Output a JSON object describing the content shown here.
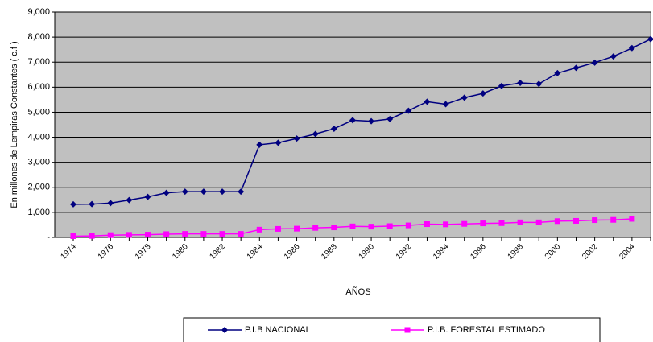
{
  "chart_data": {
    "type": "line",
    "categories": [
      "1974",
      null,
      "1976",
      null,
      "1978",
      null,
      "1980",
      null,
      "1982",
      null,
      "1984",
      null,
      "1986",
      null,
      "1988",
      null,
      "1990",
      null,
      "1992",
      null,
      "1994",
      null,
      "1996",
      null,
      "1998",
      null,
      "2000",
      null,
      "2002",
      null,
      "2004",
      null
    ],
    "series": [
      {
        "name": "P.I.B NACIONAL",
        "color": "#000080",
        "marker": "diamond",
        "values": [
          1320,
          1330,
          1370,
          1490,
          1620,
          1780,
          1830,
          1830,
          1830,
          1830,
          3700,
          3780,
          3950,
          4130,
          4340,
          4680,
          4640,
          4730,
          5060,
          5420,
          5320,
          5580,
          5750,
          6050,
          6170,
          6130,
          6560,
          6770,
          6980,
          7230,
          7560,
          7920
        ]
      },
      {
        "name": "P.I.B. FORESTAL ESTIMADO",
        "color": "#ff00ff",
        "marker": "square",
        "values": [
          50,
          60,
          90,
          100,
          110,
          130,
          140,
          140,
          140,
          140,
          310,
          340,
          350,
          380,
          400,
          440,
          430,
          450,
          480,
          530,
          520,
          540,
          560,
          570,
          600,
          600,
          650,
          660,
          690,
          700,
          740,
          null
        ]
      }
    ],
    "ylim": [
      0,
      9000
    ],
    "yticks": [
      {
        "value": 0,
        "label": "-"
      },
      {
        "value": 1000,
        "label": "1,000"
      },
      {
        "value": 2000,
        "label": "2,000"
      },
      {
        "value": 3000,
        "label": "3,000"
      },
      {
        "value": 4000,
        "label": "4,000"
      },
      {
        "value": 5000,
        "label": "5,000"
      },
      {
        "value": 6000,
        "label": "6,000"
      },
      {
        "value": 7000,
        "label": "7,000"
      },
      {
        "value": 8000,
        "label": "8,000"
      },
      {
        "value": 9000,
        "label": "9,000"
      }
    ],
    "y_label": "En millones de Lempiras Constantes ( c.f )",
    "x_label": "AÑOS",
    "grid": true,
    "legend": "bottom",
    "plot_background": "#c0c0c0"
  }
}
